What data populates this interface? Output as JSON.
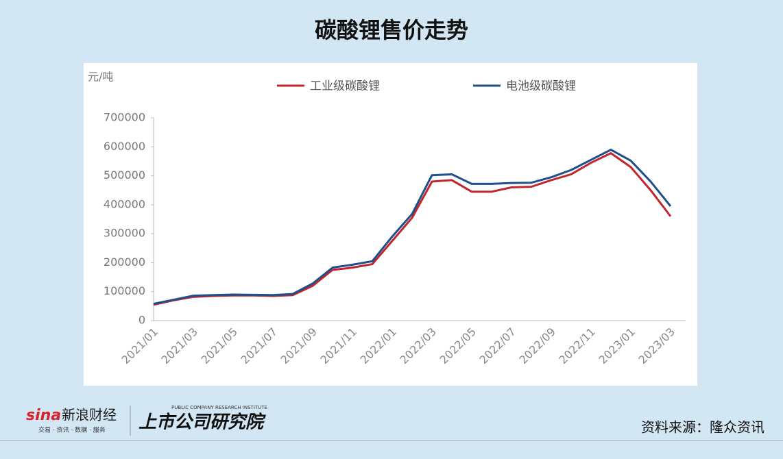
{
  "title": "碳酸锂售价走势",
  "chart_data": {
    "type": "line",
    "y_label": "元/吨",
    "x": [
      "2021/01",
      "2021/02",
      "2021/03",
      "2021/04",
      "2021/05",
      "2021/06",
      "2021/07",
      "2021/08",
      "2021/09",
      "2021/10",
      "2021/11",
      "2021/12",
      "2022/01",
      "2022/02",
      "2022/03",
      "2022/04",
      "2022/05",
      "2022/06",
      "2022/07",
      "2022/08",
      "2022/09",
      "2022/10",
      "2022/11",
      "2022/12",
      "2023/01",
      "2023/02",
      "2023/03"
    ],
    "xticks": [
      "2021/01",
      "2021/03",
      "2021/05",
      "2021/07",
      "2021/09",
      "2021/11",
      "2022/01",
      "2022/03",
      "2022/05",
      "2022/07",
      "2022/09",
      "2022/11",
      "2023/01",
      "2023/03"
    ],
    "ylim": [
      0,
      700000
    ],
    "yticks": [
      0,
      100000,
      200000,
      300000,
      400000,
      500000,
      600000,
      700000
    ],
    "grid": false,
    "series": [
      {
        "name": "工业级碳酸锂",
        "color": "#c0262d",
        "values": [
          55000,
          70000,
          82000,
          85000,
          87000,
          87000,
          85000,
          88000,
          120000,
          175000,
          183000,
          195000,
          275000,
          355000,
          480000,
          485000,
          445000,
          445000,
          460000,
          462000,
          485000,
          505000,
          545000,
          578000,
          530000,
          450000,
          360000
        ]
      },
      {
        "name": "电池级碳酸锂",
        "color": "#1f4e8c",
        "values": [
          58000,
          72000,
          86000,
          88000,
          90000,
          89000,
          88000,
          92000,
          128000,
          183000,
          193000,
          205000,
          290000,
          368000,
          502000,
          505000,
          472000,
          472000,
          475000,
          476000,
          495000,
          520000,
          555000,
          590000,
          552000,
          480000,
          395000
        ]
      }
    ]
  },
  "footer": {
    "brand": "新浪财经",
    "brand_sub": "交易 · 资讯 · 数据 · 服务",
    "institute": "上市公司研究院",
    "institute_en": "PUBLIC COMPANY RESEARCH INSTITUTE",
    "source": "资料来源：隆众资讯"
  }
}
